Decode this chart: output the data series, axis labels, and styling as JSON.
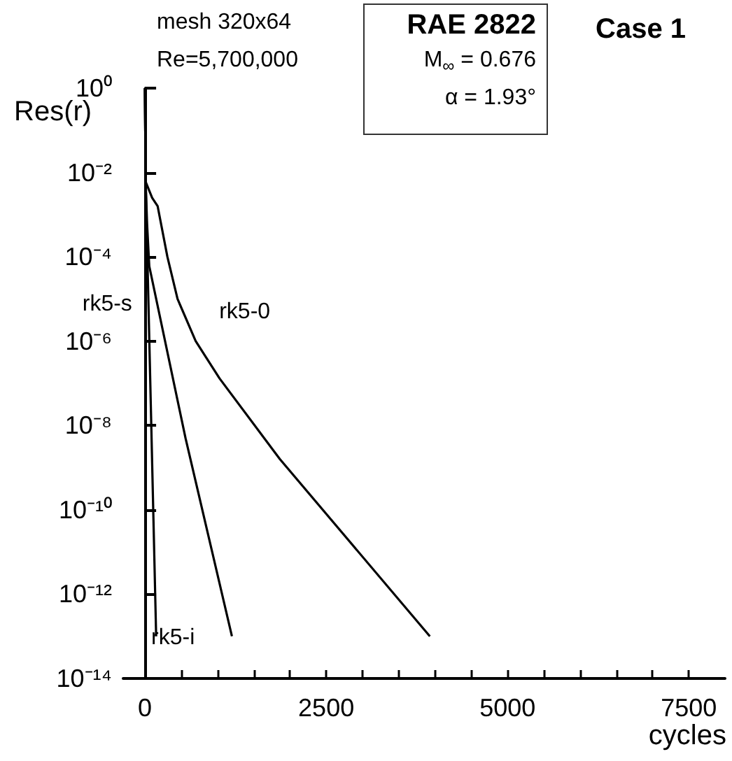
{
  "chart_data": {
    "type": "line",
    "title": "Case 1",
    "xlabel": "cycles",
    "ylabel": "Res(r)",
    "annotations": [
      "mesh 320x64",
      "Re=5,700,000",
      "RAE 2822",
      "M$_{∞}$ = 0.676",
      "α = 1.93°"
    ],
    "series": [
      {
        "name": "rk5-i",
        "color": "#000000",
        "x": [
          0,
          10,
          155
        ],
        "values": [
          1,
          0.006,
          1e-13
        ]
      },
      {
        "name": "rk5-s",
        "color": "#000000",
        "x": [
          0,
          10,
          30,
          60,
          560,
          1200
        ],
        "values": [
          1,
          0.006,
          0.0006,
          6e-05,
          5e-09,
          1e-13
        ]
      },
      {
        "name": "rk5-0",
        "color": "#000000",
        "x": [
          0,
          10,
          100,
          175,
          310,
          450,
          700,
          1030,
          1860,
          3930
        ],
        "values": [
          1,
          0.006,
          0.0025,
          0.0016,
          0.0001,
          1e-05,
          1e-06,
          1.3e-07,
          1.6e-09,
          1e-13
        ]
      }
    ],
    "log": "y",
    "xlim": [
      -300,
      8000
    ],
    "ylim": [
      1e-14,
      1
    ],
    "xticks": [
      0,
      {
        "value": 500,
        "label": null
      },
      {
        "value": 1000,
        "label": null
      },
      {
        "value": 1500,
        "label": null
      },
      {
        "value": 2000,
        "label": null
      },
      2500,
      {
        "value": 3000,
        "label": null
      },
      {
        "value": 3500,
        "label": null
      },
      {
        "value": 4000,
        "label": null
      },
      {
        "value": 4500,
        "label": null
      },
      5000,
      {
        "value": 5500,
        "label": null
      },
      {
        "value": 6000,
        "label": null
      },
      {
        "value": 6500,
        "label": null
      },
      {
        "value": 7000,
        "label": null
      },
      7500
    ],
    "yticks": [
      {
        "value": 1,
        "label": "10⁰"
      },
      {
        "value": 0.01,
        "label": "10⁻²"
      },
      {
        "value": 0.0001,
        "label": "10⁻⁴"
      },
      {
        "value": 1e-06,
        "label": "10⁻⁶"
      },
      {
        "value": 1e-08,
        "label": "10⁻⁸"
      },
      {
        "value": 1e-10,
        "label": "10⁻¹⁰"
      },
      {
        "value": 1e-12,
        "label": "10⁻¹²"
      },
      {
        "value": 1e-14,
        "label": "10⁻¹⁴"
      }
    ],
    "grid": false,
    "legend": false,
    "marker": "none",
    "line_style": "solid"
  }
}
